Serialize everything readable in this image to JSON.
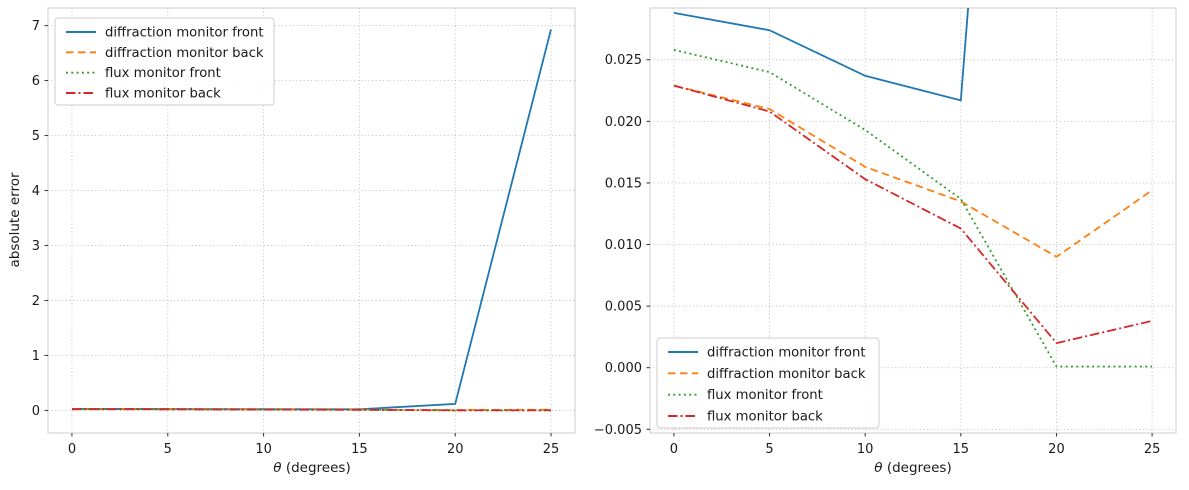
{
  "figure": {
    "background": "#ffffff",
    "grid_color": "#b8b8b8",
    "spine_color": "#cccccc",
    "tick_color": "#333333",
    "text_color": "#1a1a1a"
  },
  "chart_data": [
    {
      "type": "line",
      "title": "",
      "xlabel_symbol": "θ",
      "xlabel_rest": " (degrees)",
      "ylabel": "absolute error",
      "x": [
        0,
        5,
        10,
        15,
        20,
        25
      ],
      "series": [
        {
          "name": "diffraction monitor front",
          "color": "#1f77b4",
          "linestyle": "solid",
          "values": [
            0.0288,
            0.0274,
            0.0237,
            0.0217,
            0.12,
            6.93
          ]
        },
        {
          "name": "diffraction monitor back",
          "color": "#ff7f0e",
          "linestyle": "dashed",
          "values": [
            0.0229,
            0.021,
            0.0163,
            0.0135,
            0.009,
            0.0144
          ]
        },
        {
          "name": "flux monitor front",
          "color": "#2ca02c",
          "linestyle": "dotted",
          "values": [
            0.0258,
            0.024,
            0.0193,
            0.0137,
            0.0001,
            0.0001
          ]
        },
        {
          "name": "flux monitor back",
          "color": "#d62728",
          "linestyle": "dashdot",
          "values": [
            0.0229,
            0.0208,
            0.0153,
            0.0113,
            0.002,
            0.0038
          ]
        }
      ],
      "xlim": [
        -1.25,
        26.25
      ],
      "ylim": [
        -0.41,
        7.32
      ],
      "xticks": [
        0,
        5,
        10,
        15,
        20,
        25
      ],
      "xtick_labels": [
        "0",
        "5",
        "10",
        "15",
        "20",
        "25"
      ],
      "yticks": [
        0,
        1,
        2,
        3,
        4,
        5,
        6,
        7
      ],
      "ytick_labels": [
        "0",
        "1",
        "2",
        "3",
        "4",
        "5",
        "6",
        "7"
      ],
      "grid": true,
      "legend_position": "top-left"
    },
    {
      "type": "line",
      "title": "",
      "xlabel_symbol": "θ",
      "xlabel_rest": " (degrees)",
      "ylabel": "",
      "x": [
        0,
        5,
        10,
        15,
        20,
        25
      ],
      "series": [
        {
          "name": "diffraction monitor front",
          "color": "#1f77b4",
          "linestyle": "solid",
          "values": [
            0.0288,
            0.0274,
            0.0237,
            0.0217,
            0.12,
            6.93
          ]
        },
        {
          "name": "diffraction monitor back",
          "color": "#ff7f0e",
          "linestyle": "dashed",
          "values": [
            0.0229,
            0.021,
            0.0163,
            0.0135,
            0.009,
            0.0144
          ]
        },
        {
          "name": "flux monitor front",
          "color": "#2ca02c",
          "linestyle": "dotted",
          "values": [
            0.0258,
            0.024,
            0.0193,
            0.0137,
            0.0001,
            0.0001
          ]
        },
        {
          "name": "flux monitor back",
          "color": "#d62728",
          "linestyle": "dashdot",
          "values": [
            0.0229,
            0.0208,
            0.0153,
            0.0113,
            0.002,
            0.0038
          ]
        }
      ],
      "xlim": [
        -1.25,
        26.25
      ],
      "ylim": [
        -0.0053,
        0.0292
      ],
      "xticks": [
        0,
        5,
        10,
        15,
        20,
        25
      ],
      "xtick_labels": [
        "0",
        "5",
        "10",
        "15",
        "20",
        "25"
      ],
      "yticks": [
        -0.005,
        0.0,
        0.005,
        0.01,
        0.015,
        0.02,
        0.025
      ],
      "ytick_labels": [
        "−0.005",
        "0.000",
        "0.005",
        "0.010",
        "0.015",
        "0.020",
        "0.025"
      ],
      "grid": true,
      "legend_position": "bottom-left"
    }
  ]
}
